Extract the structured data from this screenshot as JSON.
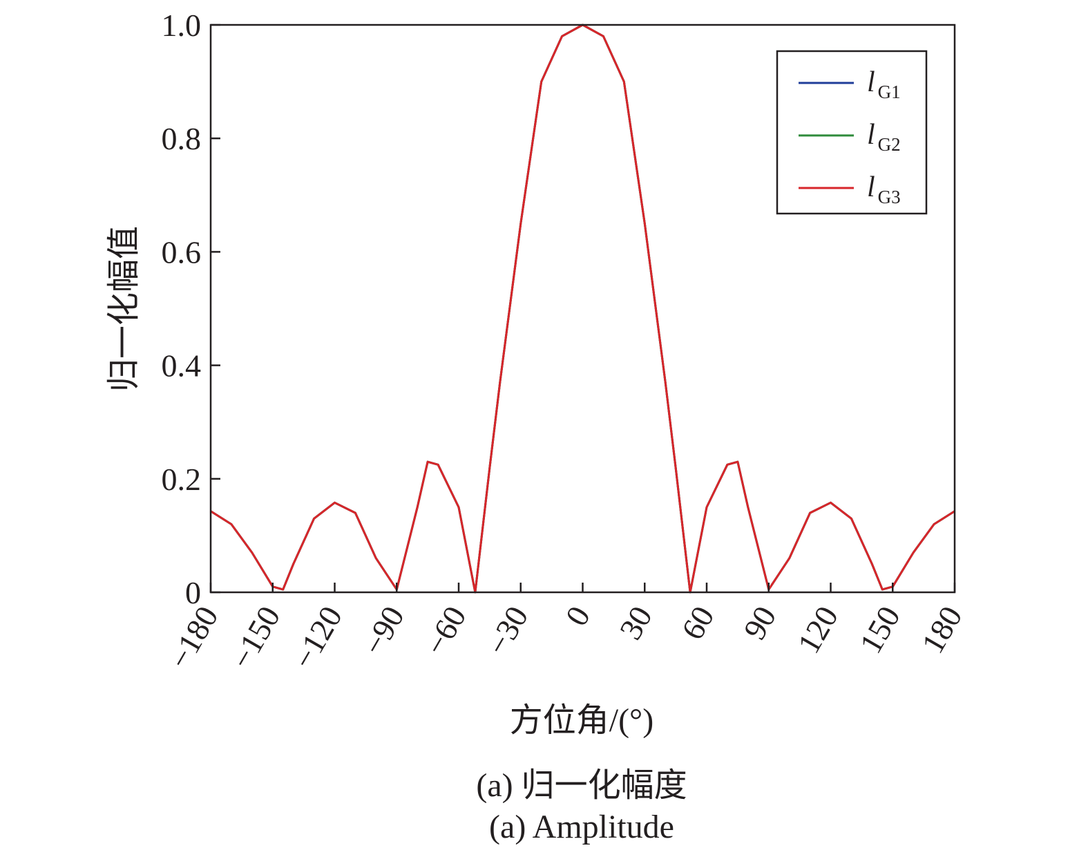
{
  "chart_data": {
    "type": "line",
    "xlabel": "方位角/(°)",
    "ylabel": "归一化幅值",
    "xlim": [
      -180,
      180
    ],
    "ylim": [
      0,
      1.0
    ],
    "xticks": [
      -180,
      -150,
      -120,
      -90,
      -60,
      -30,
      0,
      30,
      60,
      90,
      120,
      150,
      180
    ],
    "yticks": [
      0,
      0.2,
      0.4,
      0.6,
      0.8,
      1.0
    ],
    "xtick_labels": [
      "−180",
      "−150",
      "−120",
      "−90",
      "−60",
      "−30",
      "0",
      "30",
      "60",
      "90",
      "120",
      "150",
      "180"
    ],
    "ytick_labels": [
      "0",
      "0.2",
      "0.4",
      "0.6",
      "0.8",
      "1.0"
    ],
    "grid": false,
    "legend_position": "top-right",
    "x": [
      -180,
      -170,
      -160,
      -150,
      -145,
      -140,
      -130,
      -120,
      -110,
      -100,
      -90,
      -80,
      -75,
      -70,
      -60,
      -52,
      -45,
      -40,
      -30,
      -20,
      -10,
      0,
      10,
      20,
      30,
      40,
      45,
      52,
      60,
      70,
      75,
      80,
      90,
      100,
      110,
      120,
      130,
      140,
      145,
      150,
      160,
      170,
      180
    ],
    "series": [
      {
        "name": "l",
        "name_sub": "G1",
        "color": "#1f3d99",
        "values": [
          0.143,
          0.12,
          0.07,
          0.01,
          0.005,
          0.05,
          0.13,
          0.158,
          0.14,
          0.06,
          0.005,
          0.15,
          0.23,
          0.225,
          0.15,
          0.0,
          0.22,
          0.37,
          0.65,
          0.9,
          0.98,
          1.0,
          0.98,
          0.9,
          0.65,
          0.37,
          0.22,
          0.0,
          0.15,
          0.225,
          0.23,
          0.15,
          0.005,
          0.06,
          0.14,
          0.158,
          0.13,
          0.05,
          0.005,
          0.01,
          0.07,
          0.12,
          0.143
        ]
      },
      {
        "name": "l",
        "name_sub": "G2",
        "color": "#2e8b3a",
        "values": [
          0.143,
          0.12,
          0.07,
          0.01,
          0.005,
          0.05,
          0.13,
          0.158,
          0.14,
          0.06,
          0.005,
          0.15,
          0.23,
          0.225,
          0.15,
          0.0,
          0.22,
          0.37,
          0.65,
          0.9,
          0.98,
          1.0,
          0.98,
          0.9,
          0.65,
          0.37,
          0.22,
          0.0,
          0.15,
          0.225,
          0.23,
          0.15,
          0.005,
          0.06,
          0.14,
          0.158,
          0.13,
          0.05,
          0.005,
          0.01,
          0.07,
          0.12,
          0.143
        ]
      },
      {
        "name": "l",
        "name_sub": "G3",
        "color": "#d7262b",
        "values": [
          0.143,
          0.12,
          0.07,
          0.01,
          0.005,
          0.05,
          0.13,
          0.158,
          0.14,
          0.06,
          0.005,
          0.15,
          0.23,
          0.225,
          0.15,
          0.0,
          0.22,
          0.37,
          0.65,
          0.9,
          0.98,
          1.0,
          0.98,
          0.9,
          0.65,
          0.37,
          0.22,
          0.0,
          0.15,
          0.225,
          0.23,
          0.15,
          0.005,
          0.06,
          0.14,
          0.158,
          0.13,
          0.05,
          0.005,
          0.01,
          0.07,
          0.12,
          0.143
        ]
      }
    ]
  },
  "caption": {
    "line1": "(a) 归一化幅度",
    "line2": "(a) Amplitude"
  }
}
